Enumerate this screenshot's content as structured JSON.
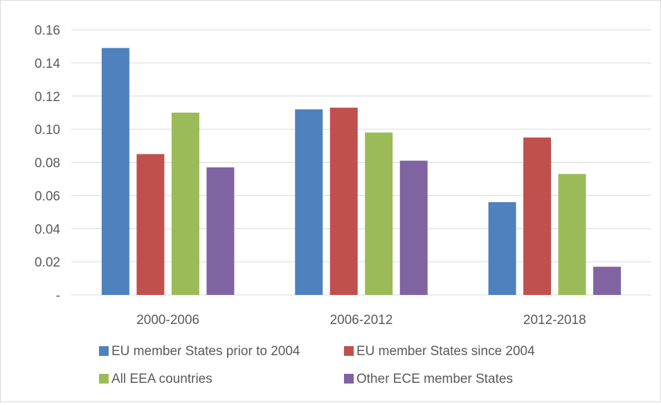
{
  "chart_data": {
    "type": "bar",
    "title": "",
    "xlabel": "",
    "ylabel": "",
    "categories": [
      "2000-2006",
      "2006-2012",
      "2012-2018"
    ],
    "ylim": [
      0,
      0.16
    ],
    "yticks": [
      0,
      0.02,
      0.04,
      0.06,
      0.08,
      0.1,
      0.12,
      0.14,
      0.16
    ],
    "ytick_labels": [
      "-",
      "0.02",
      "0.04",
      "0.06",
      "0.08",
      "0.10",
      "0.12",
      "0.14",
      "0.16"
    ],
    "grid": true,
    "legend_position": "bottom",
    "series": [
      {
        "name": "EU member States prior to 2004",
        "color": "#4f81bd",
        "values": [
          0.149,
          0.112,
          0.056
        ]
      },
      {
        "name": "EU member States since 2004",
        "color": "#c0504d",
        "values": [
          0.085,
          0.113,
          0.095
        ]
      },
      {
        "name": "All EEA countries",
        "color": "#9bbb59",
        "values": [
          0.11,
          0.098,
          0.073
        ]
      },
      {
        "name": "Other ECE member States",
        "color": "#8064a2",
        "values": [
          0.077,
          0.081,
          0.017
        ]
      }
    ]
  }
}
